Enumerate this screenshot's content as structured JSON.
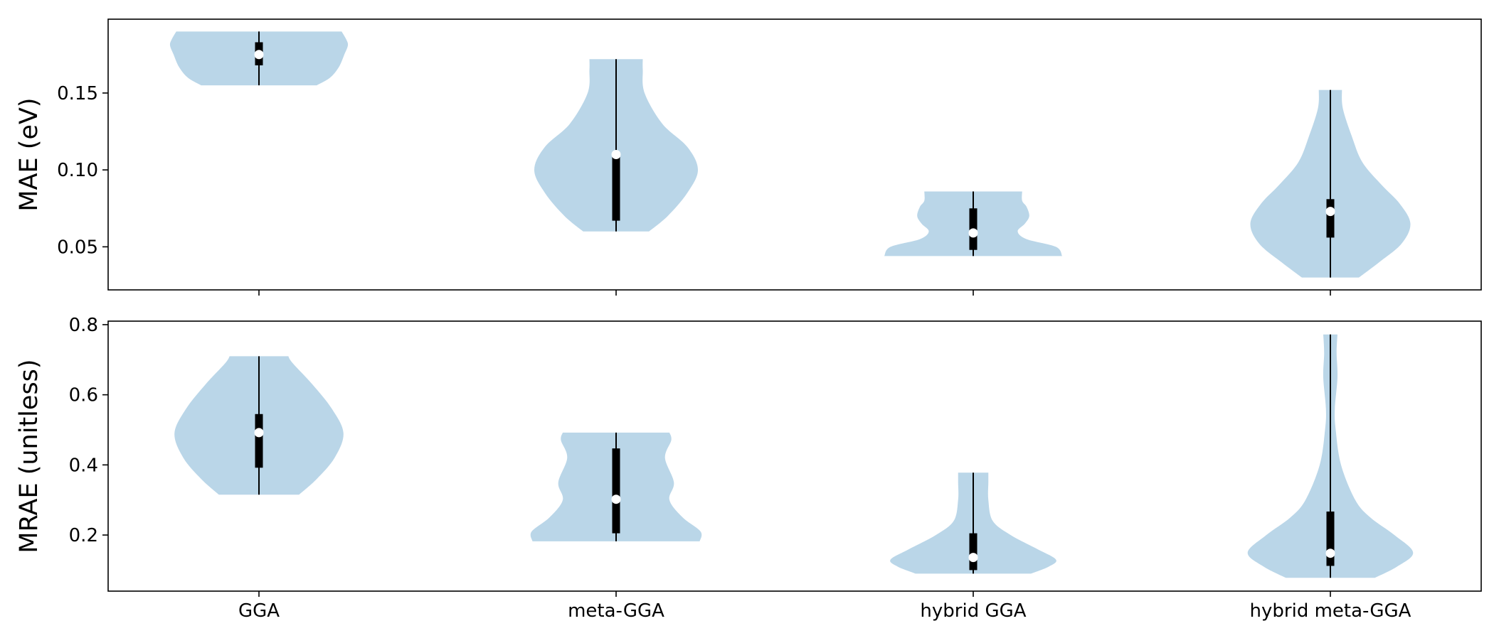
{
  "chart_data": [
    {
      "type": "violin",
      "ylabel": "MAE (eV)",
      "yticks": [
        0.05,
        0.1,
        0.15
      ],
      "ytick_labels": [
        "0.05",
        "0.10",
        "0.15"
      ],
      "ylim": [
        0.022,
        0.198
      ],
      "show_x_tick_labels": false,
      "violin_color": "#bad6e8",
      "categories": [
        "GGA",
        "meta-GGA",
        "hybrid GGA",
        "hybrid meta-GGA"
      ],
      "violins": [
        {
          "category": "GGA",
          "min": 0.155,
          "max": 0.19,
          "q1": 0.168,
          "median": 0.175,
          "q3": 0.183,
          "profile": [
            [
              0.155,
              0.65
            ],
            [
              0.16,
              0.8
            ],
            [
              0.167,
              0.9
            ],
            [
              0.175,
              0.96
            ],
            [
              0.181,
              1.0
            ],
            [
              0.185,
              0.98
            ],
            [
              0.19,
              0.93
            ]
          ]
        },
        {
          "category": "meta-GGA",
          "min": 0.06,
          "max": 0.172,
          "q1": 0.067,
          "median": 0.11,
          "q3": 0.11,
          "profile": [
            [
              0.06,
              0.37
            ],
            [
              0.07,
              0.58
            ],
            [
              0.085,
              0.8
            ],
            [
              0.1,
              0.92
            ],
            [
              0.115,
              0.8
            ],
            [
              0.13,
              0.52
            ],
            [
              0.15,
              0.32
            ],
            [
              0.165,
              0.3
            ],
            [
              0.172,
              0.3
            ]
          ]
        },
        {
          "category": "hybrid GGA",
          "min": 0.044,
          "max": 0.086,
          "q1": 0.048,
          "median": 0.059,
          "q3": 0.075,
          "profile": [
            [
              0.044,
              1.0
            ],
            [
              0.05,
              0.93
            ],
            [
              0.055,
              0.6
            ],
            [
              0.06,
              0.5
            ],
            [
              0.065,
              0.58
            ],
            [
              0.07,
              0.63
            ],
            [
              0.076,
              0.6
            ],
            [
              0.08,
              0.55
            ],
            [
              0.086,
              0.55
            ]
          ]
        },
        {
          "category": "hybrid meta-GGA",
          "min": 0.03,
          "max": 0.152,
          "q1": 0.056,
          "median": 0.073,
          "q3": 0.081,
          "profile": [
            [
              0.03,
              0.32
            ],
            [
              0.04,
              0.55
            ],
            [
              0.052,
              0.8
            ],
            [
              0.065,
              0.9
            ],
            [
              0.078,
              0.78
            ],
            [
              0.09,
              0.58
            ],
            [
              0.105,
              0.36
            ],
            [
              0.122,
              0.24
            ],
            [
              0.14,
              0.14
            ],
            [
              0.152,
              0.13
            ]
          ]
        }
      ]
    },
    {
      "type": "violin",
      "ylabel": "MRAE (unitless)",
      "yticks": [
        0.2,
        0.4,
        0.6,
        0.8
      ],
      "ytick_labels": [
        "0.2",
        "0.4",
        "0.6",
        "0.8"
      ],
      "ylim": [
        0.04,
        0.81
      ],
      "show_x_tick_labels": true,
      "violin_color": "#bad6e8",
      "categories": [
        "GGA",
        "meta-GGA",
        "hybrid GGA",
        "hybrid meta-GGA"
      ],
      "violins": [
        {
          "category": "GGA",
          "min": 0.315,
          "max": 0.71,
          "q1": 0.392,
          "median": 0.492,
          "q3": 0.545,
          "profile": [
            [
              0.315,
              0.45
            ],
            [
              0.36,
              0.65
            ],
            [
              0.42,
              0.85
            ],
            [
              0.49,
              0.95
            ],
            [
              0.56,
              0.82
            ],
            [
              0.63,
              0.6
            ],
            [
              0.69,
              0.38
            ],
            [
              0.71,
              0.33
            ]
          ]
        },
        {
          "category": "meta-GGA",
          "min": 0.182,
          "max": 0.492,
          "q1": 0.205,
          "median": 0.302,
          "q3": 0.447,
          "profile": [
            [
              0.182,
              0.94
            ],
            [
              0.21,
              0.95
            ],
            [
              0.25,
              0.75
            ],
            [
              0.3,
              0.6
            ],
            [
              0.35,
              0.65
            ],
            [
              0.42,
              0.55
            ],
            [
              0.47,
              0.62
            ],
            [
              0.492,
              0.6
            ]
          ]
        },
        {
          "category": "hybrid GGA",
          "min": 0.09,
          "max": 0.378,
          "q1": 0.1,
          "median": 0.136,
          "q3": 0.205,
          "profile": [
            [
              0.09,
              0.65
            ],
            [
              0.11,
              0.85
            ],
            [
              0.13,
              0.93
            ],
            [
              0.16,
              0.72
            ],
            [
              0.2,
              0.42
            ],
            [
              0.24,
              0.22
            ],
            [
              0.3,
              0.17
            ],
            [
              0.35,
              0.17
            ],
            [
              0.378,
              0.17
            ]
          ]
        },
        {
          "category": "hybrid meta-GGA",
          "min": 0.078,
          "max": 0.772,
          "q1": 0.112,
          "median": 0.148,
          "q3": 0.267,
          "profile": [
            [
              0.078,
              0.5
            ],
            [
              0.11,
              0.75
            ],
            [
              0.15,
              0.93
            ],
            [
              0.2,
              0.72
            ],
            [
              0.25,
              0.45
            ],
            [
              0.3,
              0.28
            ],
            [
              0.4,
              0.12
            ],
            [
              0.5,
              0.06
            ],
            [
              0.56,
              0.05
            ],
            [
              0.65,
              0.08
            ],
            [
              0.72,
              0.07
            ],
            [
              0.772,
              0.08
            ]
          ]
        }
      ]
    }
  ]
}
